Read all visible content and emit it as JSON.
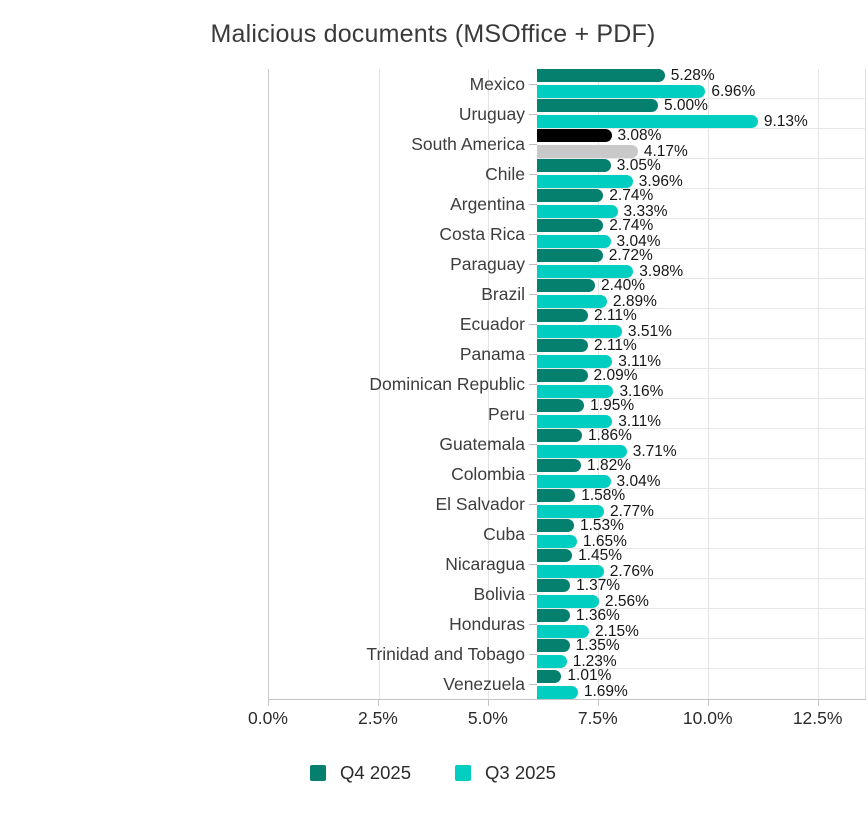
{
  "title": "Malicious documents (MSOffice + PDF)",
  "chart_data": {
    "type": "bar",
    "orientation": "horizontal",
    "title": "Malicious documents (MSOffice + PDF)",
    "categories": [
      "Mexico",
      "Uruguay",
      "South America",
      "Chile",
      "Argentina",
      "Costa Rica",
      "Paraguay",
      "Brazil",
      "Ecuador",
      "Panama",
      "Dominican Republic",
      "Peru",
      "Guatemala",
      "Colombia",
      "El Salvador",
      "Cuba",
      "Nicaragua",
      "Bolivia",
      "Honduras",
      "Trinidad and Tobago",
      "Venezuela"
    ],
    "series": [
      {
        "name": "Q4 2025",
        "color": "#06806E",
        "values": [
          5.28,
          5.0,
          3.08,
          3.05,
          2.74,
          2.74,
          2.72,
          2.4,
          2.11,
          2.11,
          2.09,
          1.95,
          1.86,
          1.82,
          1.58,
          1.53,
          1.45,
          1.37,
          1.36,
          1.35,
          1.01
        ],
        "labels": [
          "5.28%",
          "5.00%",
          "3.08%",
          "3.05%",
          "2.74%",
          "2.74%",
          "2.72%",
          "2.40%",
          "2.11%",
          "2.11%",
          "2.09%",
          "1.95%",
          "1.86%",
          "1.82%",
          "1.58%",
          "1.53%",
          "1.45%",
          "1.37%",
          "1.36%",
          "1.35%",
          "1.01%"
        ]
      },
      {
        "name": "Q3 2025",
        "color": "#00CEC0",
        "values": [
          6.96,
          9.13,
          4.17,
          3.96,
          3.33,
          3.04,
          3.98,
          2.89,
          3.51,
          3.11,
          3.16,
          3.11,
          3.71,
          3.04,
          2.77,
          1.65,
          2.76,
          2.56,
          2.15,
          1.23,
          1.69
        ],
        "labels": [
          "6.96%",
          "9.13%",
          "4.17%",
          "3.96%",
          "3.33%",
          "3.04%",
          "3.98%",
          "2.89%",
          "3.51%",
          "3.11%",
          "3.16%",
          "3.11%",
          "3.71%",
          "3.04%",
          "2.77%",
          "1.65%",
          "2.76%",
          "2.56%",
          "2.15%",
          "1.23%",
          "1.69%"
        ]
      }
    ],
    "highlight": {
      "category": "South America",
      "index": 2,
      "series_colors": [
        "#000000",
        "#C9C9C9"
      ]
    },
    "x_ticks": {
      "values": [
        0,
        2.5,
        5,
        7.5,
        10,
        12.5
      ],
      "labels": [
        "0.0%",
        "2.5%",
        "5.0%",
        "7.5%",
        "10.0%",
        "12.5%"
      ]
    },
    "xlim": [
      0,
      13.6
    ],
    "grid": "vertical-major-ticks-plus-row-separators",
    "legend_position": "bottom-center",
    "value_labels_shown": true
  }
}
